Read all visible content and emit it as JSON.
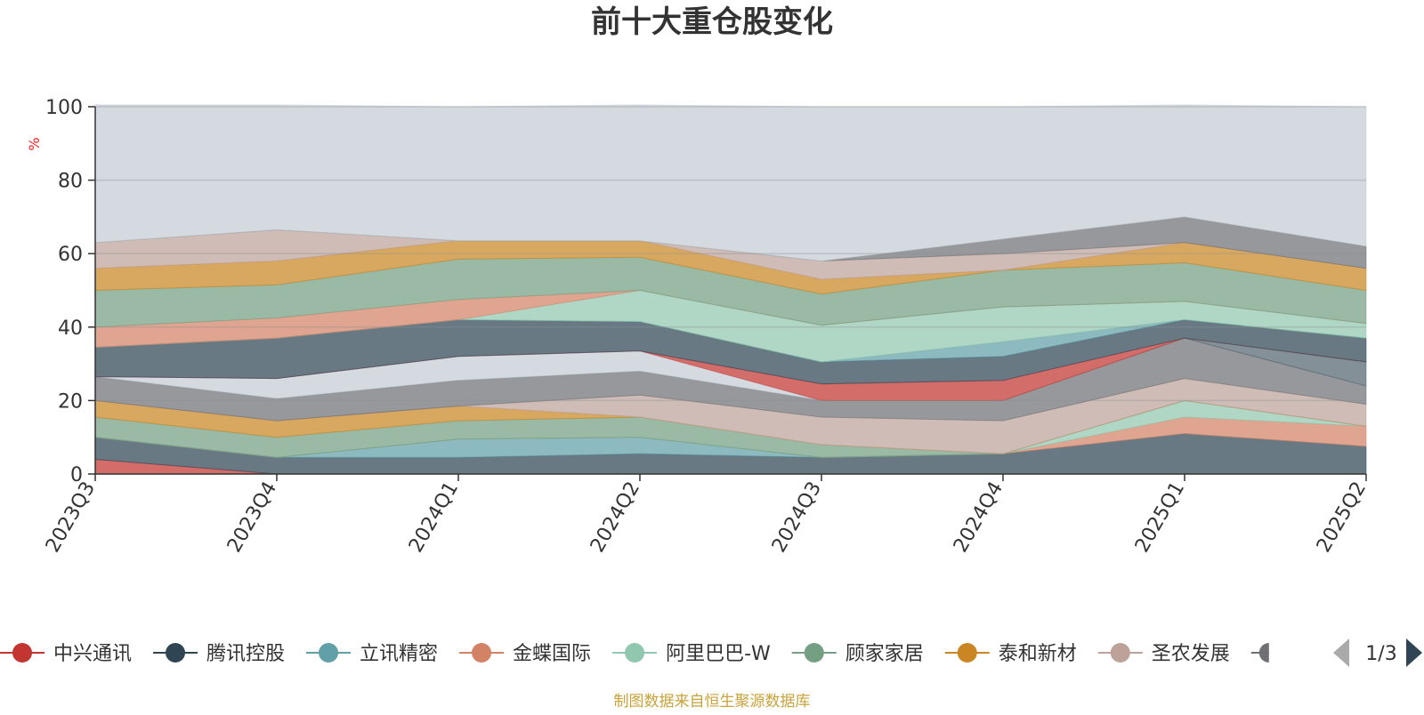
{
  "chart_data": {
    "type": "area",
    "title": "前十大重仓股变化",
    "y_unit": "%",
    "ylim": [
      0,
      100
    ],
    "y_ticks": [
      0,
      20,
      40,
      60,
      80,
      100
    ],
    "grid": true,
    "categories": [
      "2023Q3",
      "2023Q4",
      "2024Q1",
      "2024Q2",
      "2024Q3",
      "2024Q4",
      "2025Q1",
      "2025Q2"
    ],
    "series": [
      {
        "name": "中兴通讯",
        "color": "#c23531",
        "values": [
          4,
          0,
          0,
          0,
          0,
          0,
          0,
          0
        ]
      },
      {
        "name": "腾讯控股",
        "color": "#2f4554",
        "values": [
          6,
          4.5,
          4.5,
          5.5,
          4.5,
          5.5,
          11,
          7.5
        ]
      },
      {
        "name": "立讯精密",
        "color": "#61a0a8",
        "values": [
          0,
          0,
          5,
          4.5,
          0,
          0,
          0,
          0
        ]
      },
      {
        "name": "金蝶国际",
        "color": "#d48265",
        "values": [
          0,
          0,
          0,
          0,
          0,
          0,
          4.5,
          5.5
        ]
      },
      {
        "name": "阿里巴巴-W",
        "color": "#91c7ae",
        "values": [
          0,
          0,
          0,
          0,
          0,
          0,
          4.5,
          0
        ]
      },
      {
        "name": "顾家家居",
        "color": "#749f83",
        "values": [
          5.5,
          5.5,
          5,
          5.5,
          3.5,
          0,
          0,
          0
        ]
      },
      {
        "name": "泰和新材",
        "color": "#ca8622",
        "values": [
          4.5,
          4.5,
          4,
          0,
          0,
          0,
          0,
          0
        ]
      },
      {
        "name": "圣农发展",
        "color": "#bda29a",
        "values": [
          0,
          0,
          0,
          6,
          7.5,
          9,
          6,
          6
        ]
      },
      {
        "name": "",
        "color": "#6e7074",
        "values": [
          6.5,
          6,
          7,
          6.5,
          4.5,
          5.5,
          11,
          5
        ]
      },
      {
        "name": "",
        "color": "#546570",
        "values": [
          0,
          0,
          0,
          0,
          0,
          0,
          0,
          6.5
        ]
      },
      {
        "name": "",
        "color": "#c4ccd3",
        "values": [
          0,
          5.5,
          6.5,
          5.5,
          0,
          0,
          0,
          0
        ]
      },
      {
        "name": "",
        "color": "#c23531",
        "values": [
          0,
          0,
          0,
          0,
          4.5,
          5.5,
          0,
          0
        ]
      },
      {
        "name": "",
        "color": "#2f4554",
        "values": [
          8,
          11,
          10,
          8,
          6,
          6.5,
          5,
          6.5
        ]
      },
      {
        "name": "",
        "color": "#61a0a8",
        "values": [
          0,
          0,
          0,
          0,
          0,
          4,
          0,
          0
        ]
      },
      {
        "name": "",
        "color": "#91c7ae",
        "values": [
          0,
          0,
          0,
          8.5,
          10,
          9.5,
          5,
          4
        ]
      },
      {
        "name": "",
        "color": "#d48265",
        "values": [
          5.5,
          5.5,
          5.5,
          0,
          0,
          0,
          0,
          0
        ]
      },
      {
        "name": "",
        "color": "#749f83",
        "values": [
          10,
          9,
          11,
          9,
          8.5,
          10,
          10.5,
          9
        ]
      },
      {
        "name": "",
        "color": "#ca8622",
        "values": [
          6,
          6.5,
          5,
          4.5,
          4,
          0,
          5.5,
          6
        ]
      },
      {
        "name": "",
        "color": "#bda29a",
        "values": [
          7,
          8.5,
          0,
          0,
          5,
          4.5,
          0,
          0
        ]
      },
      {
        "name": "",
        "color": "#6e7074",
        "values": [
          0,
          0,
          0,
          0,
          0,
          4,
          7,
          6
        ]
      },
      {
        "name": "",
        "color": "#c4ccd3",
        "values": [
          37.5,
          34,
          36.5,
          37,
          42,
          36,
          30.5,
          38
        ]
      }
    ],
    "legend": {
      "items": [
        "中兴通讯",
        "腾讯控股",
        "立讯精密",
        "金蝶国际",
        "阿里巴巴-W",
        "顾家家居",
        "泰和新材",
        "圣农发展"
      ],
      "page_text": "1/3",
      "position": "bottom"
    }
  },
  "footer_note": "制图数据来自恒生聚源数据库"
}
